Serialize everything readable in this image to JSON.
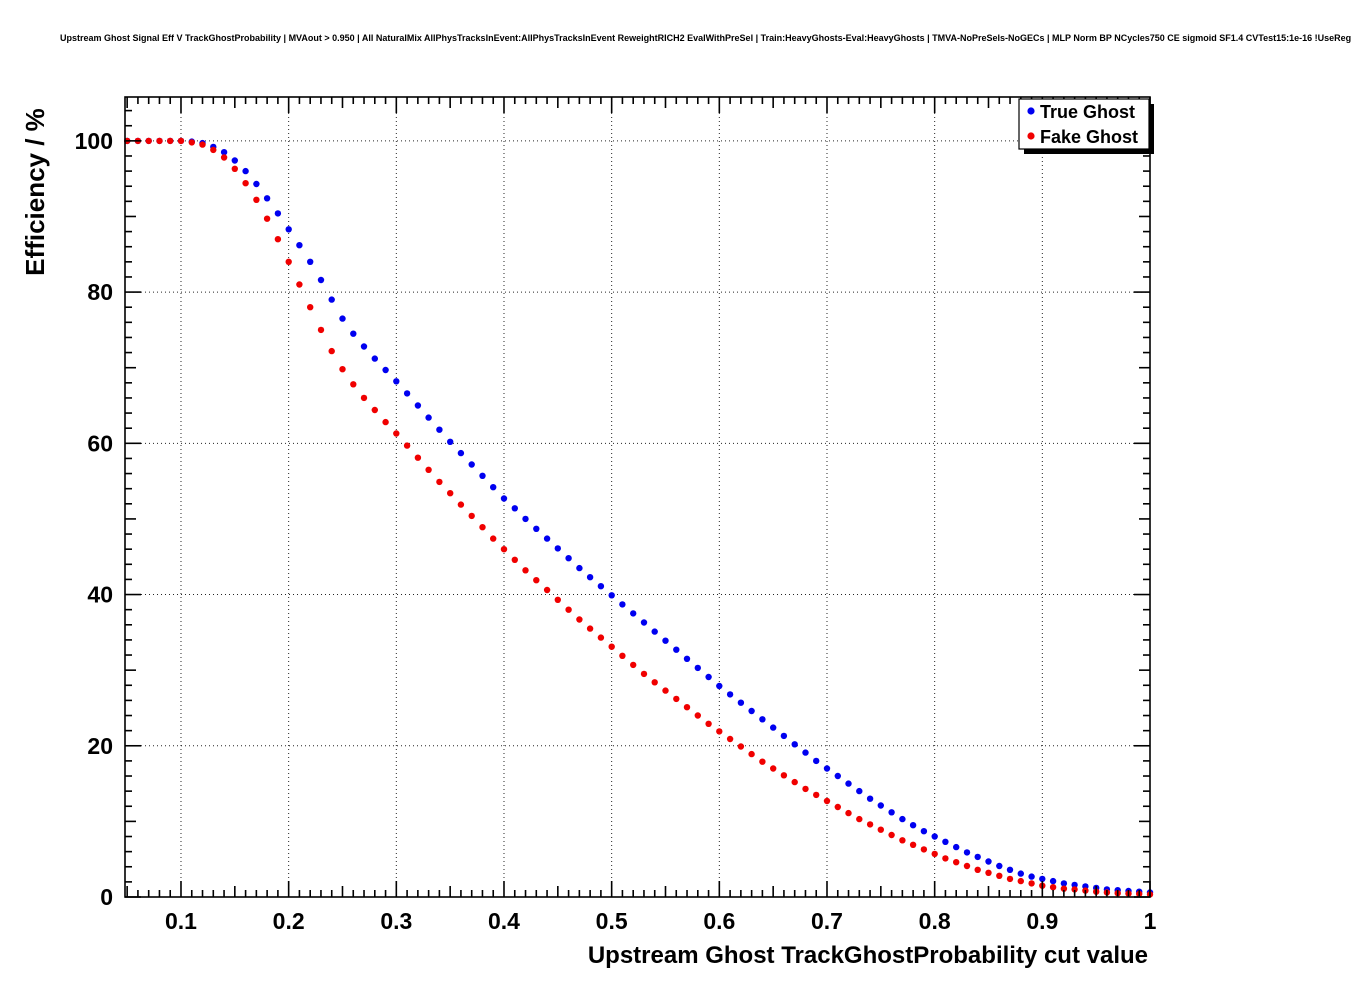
{
  "title": "Upstream Ghost Signal Eff V TrackGhostProbability | MVAout > 0.950 | All NaturalMix AllPhysTracksInEvent:AllPhysTracksInEvent ReweightRICH2 EvalWithPreSel | Train:HeavyGhosts-Eval:HeavyGhosts | TMVA-NoPreSels-NoGECs | MLP Norm BP NCycles750 CE sigmoid SF1.4 CVTest15:1e-16 !UseReg",
  "chart_data": {
    "type": "scatter",
    "title": "Upstream Ghost Signal Eff V TrackGhostProbability",
    "xlabel": "Upstream Ghost TrackGhostProbability cut value",
    "ylabel": "Efficiency / %",
    "xlim": [
      0.048,
      1.0
    ],
    "ylim": [
      0,
      105.8
    ],
    "x_ticks": [
      0.1,
      0.2,
      0.3,
      0.4,
      0.5,
      0.6,
      0.7,
      0.8,
      0.9,
      1
    ],
    "y_ticks": [
      0,
      20,
      40,
      60,
      80,
      100
    ],
    "grid": true,
    "marker": "circle",
    "legend": {
      "position": "top-right",
      "entries": [
        {
          "label": "True Ghost",
          "color": "#0000f0"
        },
        {
          "label": "Fake Ghost",
          "color": "#f00000"
        }
      ]
    },
    "x": [
      0.05,
      0.06,
      0.07,
      0.08,
      0.09,
      0.1,
      0.11,
      0.12,
      0.13,
      0.14,
      0.15,
      0.16,
      0.17,
      0.18,
      0.19,
      0.2,
      0.21,
      0.22,
      0.23,
      0.24,
      0.25,
      0.26,
      0.27,
      0.28,
      0.29,
      0.3,
      0.31,
      0.32,
      0.33,
      0.34,
      0.35,
      0.36,
      0.37,
      0.38,
      0.39,
      0.4,
      0.41,
      0.42,
      0.43,
      0.44,
      0.45,
      0.46,
      0.47,
      0.48,
      0.49,
      0.5,
      0.51,
      0.52,
      0.53,
      0.54,
      0.55,
      0.56,
      0.57,
      0.58,
      0.59,
      0.6,
      0.61,
      0.62,
      0.63,
      0.64,
      0.65,
      0.66,
      0.67,
      0.68,
      0.69,
      0.7,
      0.71,
      0.72,
      0.73,
      0.74,
      0.75,
      0.76,
      0.77,
      0.78,
      0.79,
      0.8,
      0.81,
      0.82,
      0.83,
      0.84,
      0.85,
      0.86,
      0.87,
      0.88,
      0.89,
      0.9,
      0.91,
      0.92,
      0.93,
      0.94,
      0.95,
      0.96,
      0.97,
      0.98,
      0.99,
      1.0
    ],
    "series": [
      {
        "name": "True Ghost",
        "color": "#0000f0",
        "values": [
          100,
          100,
          100,
          100,
          100,
          100,
          99.9,
          99.7,
          99.2,
          98.5,
          97.4,
          96.0,
          94.3,
          92.4,
          90.4,
          88.3,
          86.2,
          84.0,
          81.6,
          79.0,
          76.5,
          74.5,
          72.8,
          71.2,
          69.7,
          68.2,
          66.6,
          65.0,
          63.4,
          61.8,
          60.2,
          58.7,
          57.2,
          55.7,
          54.2,
          52.7,
          51.4,
          50.0,
          48.7,
          47.4,
          46.1,
          44.8,
          43.5,
          42.3,
          41.1,
          39.9,
          38.7,
          37.5,
          36.3,
          35.1,
          33.9,
          32.7,
          31.5,
          30.3,
          29.1,
          27.9,
          26.8,
          25.7,
          24.6,
          23.5,
          22.4,
          21.3,
          20.2,
          19.1,
          18.0,
          17.0,
          16.0,
          15.0,
          14.0,
          13.0,
          12.1,
          11.2,
          10.3,
          9.5,
          8.7,
          8.0,
          7.3,
          6.6,
          5.9,
          5.3,
          4.7,
          4.1,
          3.6,
          3.1,
          2.7,
          2.4,
          2.1,
          1.8,
          1.6,
          1.4,
          1.2,
          1.0,
          0.9,
          0.8,
          0.7,
          0.6
        ]
      },
      {
        "name": "Fake Ghost",
        "color": "#f00000",
        "values": [
          100,
          100,
          100,
          100,
          100,
          100,
          99.8,
          99.5,
          98.8,
          97.8,
          96.3,
          94.4,
          92.2,
          89.7,
          87.0,
          84.0,
          81.0,
          78.0,
          75.0,
          72.2,
          69.8,
          67.8,
          66.0,
          64.4,
          62.8,
          61.3,
          59.7,
          58.1,
          56.5,
          54.9,
          53.4,
          51.9,
          50.4,
          48.9,
          47.4,
          46.0,
          44.6,
          43.2,
          41.9,
          40.6,
          39.3,
          38.0,
          36.7,
          35.5,
          34.3,
          33.1,
          31.9,
          30.7,
          29.5,
          28.4,
          27.3,
          26.2,
          25.1,
          24.0,
          22.9,
          21.9,
          20.9,
          19.9,
          18.9,
          17.9,
          17.0,
          16.1,
          15.2,
          14.3,
          13.5,
          12.7,
          11.9,
          11.1,
          10.3,
          9.6,
          8.9,
          8.2,
          7.5,
          6.9,
          6.3,
          5.7,
          5.1,
          4.6,
          4.1,
          3.6,
          3.2,
          2.8,
          2.4,
          2.1,
          1.8,
          1.5,
          1.3,
          1.1,
          1.0,
          0.85,
          0.7,
          0.6,
          0.5,
          0.45,
          0.4,
          0.35
        ]
      }
    ]
  }
}
